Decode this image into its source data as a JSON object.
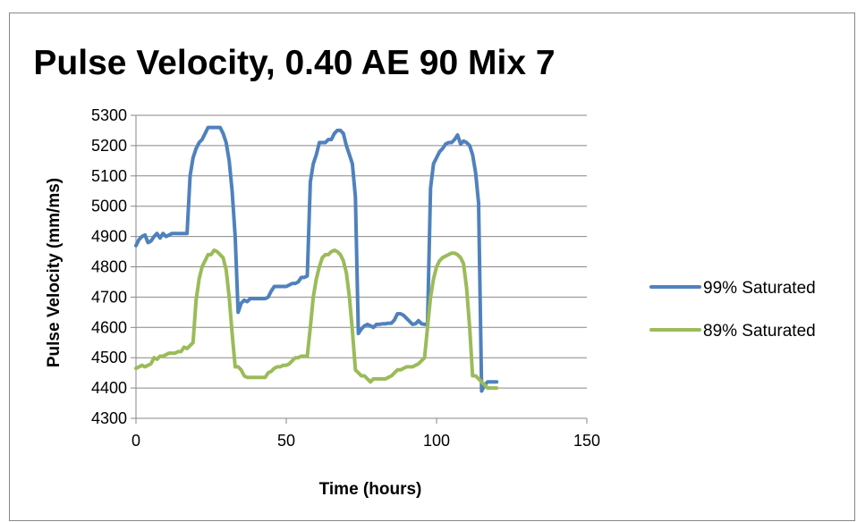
{
  "chart_data": {
    "type": "line",
    "title": "Pulse Velocity, 0.40 AE 90 Mix 7",
    "xlabel": "Time (hours)",
    "ylabel": "Pulse Velocity (mm/ms)",
    "xlim": [
      0,
      150
    ],
    "ylim": [
      4300,
      5300
    ],
    "xticks": [
      0,
      50,
      100,
      150
    ],
    "yticks": [
      4300,
      4400,
      4500,
      4600,
      4700,
      4800,
      4900,
      5000,
      5100,
      5200,
      5300
    ],
    "grid": "horizontal",
    "legend_position": "right",
    "series": [
      {
        "name": "99% Saturated",
        "color": "#4f81bd",
        "x": [
          0,
          1,
          2,
          3,
          4,
          5,
          6,
          7,
          8,
          9,
          10,
          11,
          12,
          13,
          14,
          15,
          16,
          17,
          18,
          19,
          20,
          21,
          22,
          23,
          24,
          25,
          26,
          27,
          28,
          29,
          30,
          31,
          32,
          33,
          34,
          35,
          36,
          37,
          38,
          39,
          40,
          41,
          42,
          43,
          44,
          45,
          46,
          47,
          48,
          49,
          50,
          51,
          52,
          53,
          54,
          55,
          56,
          57,
          58,
          59,
          60,
          61,
          62,
          63,
          64,
          65,
          66,
          67,
          68,
          69,
          70,
          71,
          72,
          73,
          74,
          75,
          76,
          77,
          78,
          79,
          80,
          81,
          82,
          83,
          84,
          85,
          86,
          87,
          88,
          89,
          90,
          91,
          92,
          93,
          94,
          95,
          96,
          97,
          98,
          99,
          100,
          101,
          102,
          103,
          104,
          105,
          106,
          107,
          108,
          109,
          110,
          111,
          112,
          113,
          114,
          115,
          116,
          117,
          118,
          119,
          120
        ],
        "values": [
          4870,
          4890,
          4900,
          4905,
          4880,
          4885,
          4900,
          4910,
          4895,
          4910,
          4900,
          4905,
          4910,
          4910,
          4910,
          4910,
          4910,
          4910,
          5100,
          5160,
          5190,
          5210,
          5220,
          5240,
          5260,
          5260,
          5260,
          5260,
          5260,
          5240,
          5210,
          5150,
          5050,
          4900,
          4650,
          4680,
          4690,
          4685,
          4695,
          4695,
          4695,
          4695,
          4695,
          4695,
          4700,
          4720,
          4735,
          4735,
          4735,
          4735,
          4735,
          4740,
          4745,
          4745,
          4750,
          4765,
          4765,
          4770,
          5080,
          5140,
          5170,
          5210,
          5210,
          5210,
          5220,
          5220,
          5240,
          5250,
          5250,
          5240,
          5200,
          5170,
          5140,
          5030,
          4580,
          4595,
          4605,
          4610,
          4605,
          4600,
          4610,
          4610,
          4612,
          4612,
          4614,
          4614,
          4625,
          4645,
          4645,
          4640,
          4630,
          4620,
          4610,
          4612,
          4622,
          4612,
          4610,
          4610,
          5060,
          5140,
          5160,
          5180,
          5190,
          5205,
          5210,
          5210,
          5220,
          5235,
          5205,
          5215,
          5210,
          5200,
          5170,
          5110,
          5010,
          4390,
          4410,
          4420,
          4420,
          4420,
          4420
        ]
      },
      {
        "name": "89% Saturated",
        "color": "#9bbb59",
        "x": [
          0,
          1,
          2,
          3,
          4,
          5,
          6,
          7,
          8,
          9,
          10,
          11,
          12,
          13,
          14,
          15,
          16,
          17,
          18,
          19,
          20,
          21,
          22,
          23,
          24,
          25,
          26,
          27,
          28,
          29,
          30,
          31,
          32,
          33,
          34,
          35,
          36,
          37,
          38,
          39,
          40,
          41,
          42,
          43,
          44,
          45,
          46,
          47,
          48,
          49,
          50,
          51,
          52,
          53,
          54,
          55,
          56,
          57,
          58,
          59,
          60,
          61,
          62,
          63,
          64,
          65,
          66,
          67,
          68,
          69,
          70,
          71,
          72,
          73,
          74,
          75,
          76,
          77,
          78,
          79,
          80,
          81,
          82,
          83,
          84,
          85,
          86,
          87,
          88,
          89,
          90,
          91,
          92,
          93,
          94,
          95,
          96,
          97,
          98,
          99,
          100,
          101,
          102,
          103,
          104,
          105,
          106,
          107,
          108,
          109,
          110,
          111,
          112,
          113,
          114,
          115,
          116,
          117,
          118,
          119,
          120
        ],
        "values": [
          4465,
          4470,
          4475,
          4470,
          4475,
          4480,
          4500,
          4495,
          4505,
          4505,
          4510,
          4515,
          4515,
          4515,
          4520,
          4520,
          4535,
          4530,
          4540,
          4550,
          4690,
          4760,
          4800,
          4820,
          4840,
          4840,
          4855,
          4850,
          4840,
          4830,
          4790,
          4700,
          4580,
          4470,
          4470,
          4460,
          4440,
          4435,
          4435,
          4435,
          4435,
          4435,
          4435,
          4435,
          4450,
          4455,
          4465,
          4470,
          4470,
          4475,
          4475,
          4480,
          4490,
          4500,
          4500,
          4505,
          4505,
          4505,
          4600,
          4700,
          4760,
          4800,
          4830,
          4840,
          4840,
          4850,
          4855,
          4850,
          4840,
          4820,
          4780,
          4700,
          4590,
          4460,
          4450,
          4440,
          4440,
          4430,
          4420,
          4430,
          4430,
          4430,
          4430,
          4430,
          4435,
          4440,
          4450,
          4460,
          4460,
          4465,
          4470,
          4470,
          4470,
          4475,
          4480,
          4490,
          4500,
          4600,
          4700,
          4760,
          4800,
          4820,
          4830,
          4835,
          4840,
          4845,
          4845,
          4840,
          4830,
          4810,
          4730,
          4600,
          4440,
          4440,
          4430,
          4420,
          4410,
          4400,
          4400,
          4400,
          4400
        ]
      }
    ]
  }
}
